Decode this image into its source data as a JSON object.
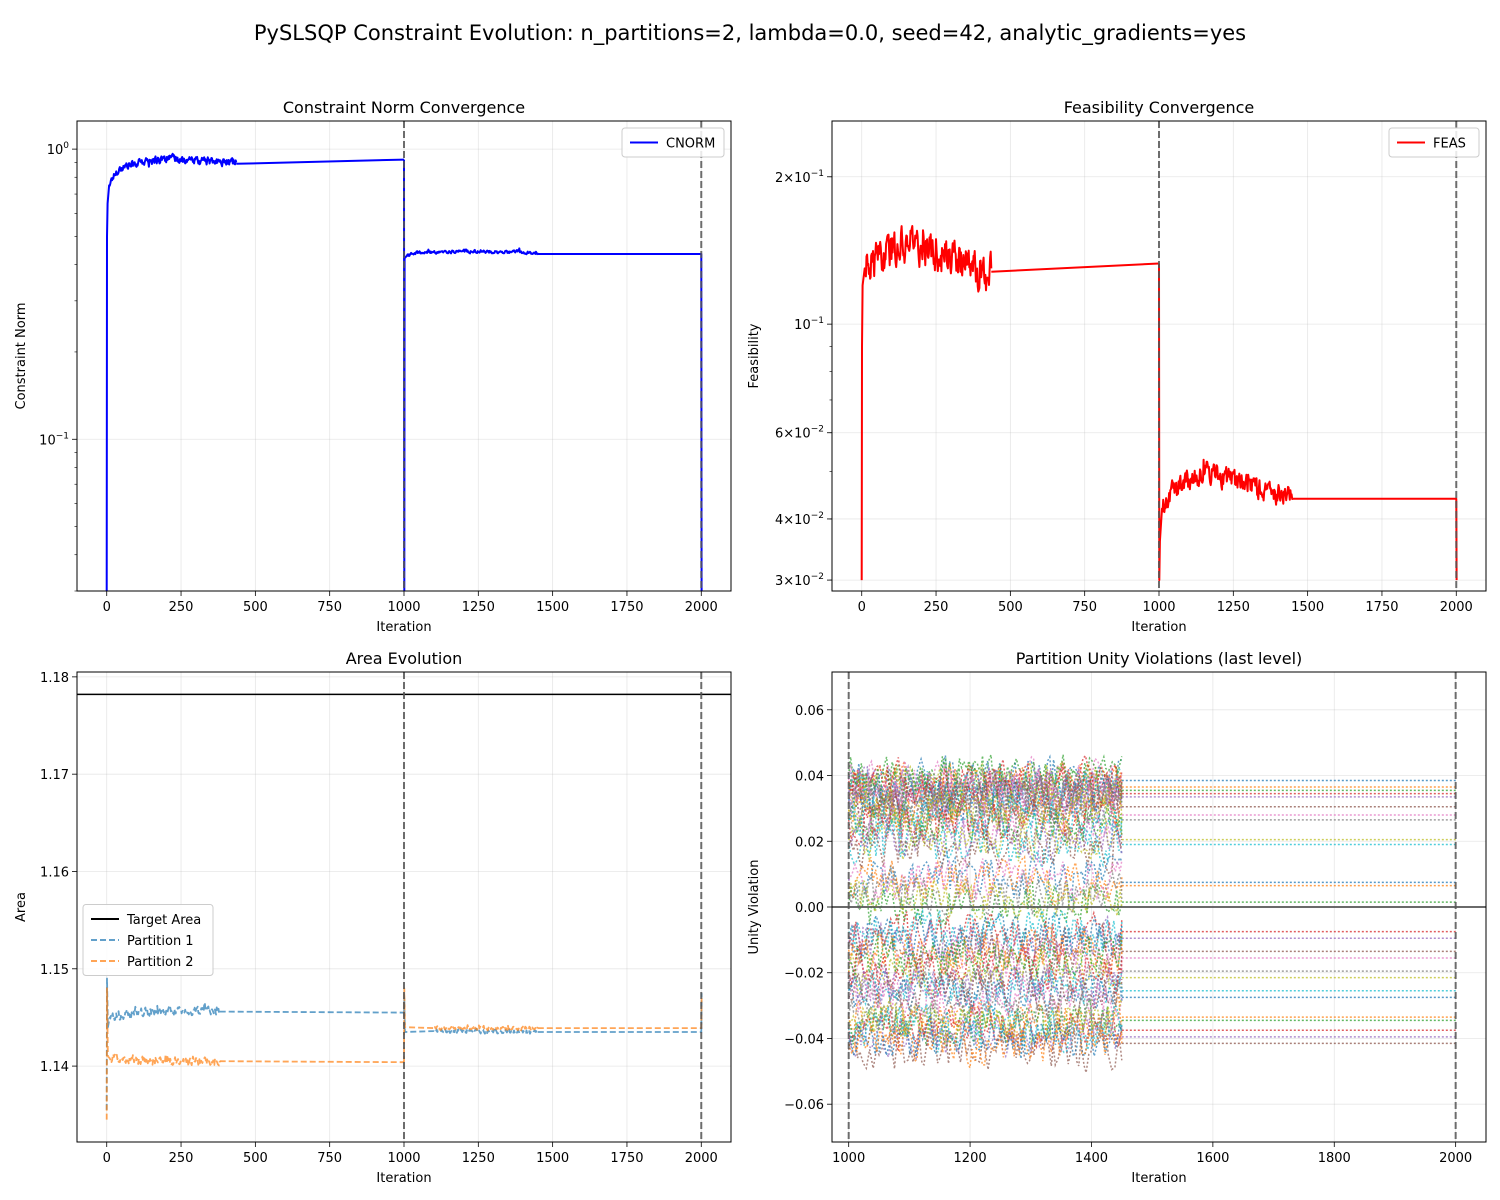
{
  "figure": {
    "title": "PySLSQP Constraint Evolution: n_partitions=2, lambda=0.0, seed=42, analytic_gradients=yes"
  },
  "chart_data": [
    {
      "id": "cnorm",
      "type": "line",
      "title": "Constraint Norm Convergence",
      "xlabel": "Iteration",
      "ylabel": "Constraint Norm",
      "yscale": "log",
      "xlim": [
        -100,
        2100
      ],
      "ylim": [
        0.03,
        1.25
      ],
      "xticks": [
        0,
        250,
        500,
        750,
        1000,
        1250,
        1500,
        1750,
        2000
      ],
      "yticks": [
        {
          "value": 1,
          "base": "10",
          "exp": "0"
        },
        {
          "value": 0.1,
          "base": "10",
          "exp": "−1"
        }
      ],
      "grid": true,
      "legend_position": "upper-right",
      "vlines": [
        1000,
        2000
      ],
      "series": [
        {
          "name": "CNORM",
          "color": "#0000ff",
          "style": "solid",
          "segments": [
            {
              "points": [
                [
                  0,
                  0.03
                ],
                [
                  1,
                  0.5
                ],
                [
                  3,
                  0.65
                ],
                [
                  8,
                  0.75
                ],
                [
                  20,
                  0.8
                ],
                [
                  40,
                  0.85
                ],
                [
                  70,
                  0.88
                ],
                [
                  120,
                  0.9
                ],
                [
                  200,
                  0.93
                ],
                [
                  300,
                  0.91
                ],
                [
                  436,
                  0.9
                ]
              ],
              "noise": 0.045
            },
            {
              "points": [
                [
                  436,
                  0.89
                ],
                [
                  1000,
                  0.92
                ]
              ],
              "noise": 0
            },
            {
              "points": [
                [
                  1000,
                  0.92
                ],
                [
                  1001,
                  0.03
                ],
                [
                  1002,
                  0.42
                ],
                [
                  1010,
                  0.43
                ],
                [
                  1050,
                  0.44
                ],
                [
                  1200,
                  0.445
                ],
                [
                  1450,
                  0.44
                ]
              ],
              "noise": 0.018
            },
            {
              "points": [
                [
                  1450,
                  0.435
                ],
                [
                  2000,
                  0.435
                ],
                [
                  2001,
                  0.03
                ]
              ],
              "noise": 0
            }
          ]
        }
      ]
    },
    {
      "id": "feas",
      "type": "line",
      "title": "Feasibility Convergence",
      "xlabel": "Iteration",
      "ylabel": "Feasibility",
      "yscale": "log",
      "xlim": [
        -100,
        2100
      ],
      "ylim": [
        0.0285,
        0.26
      ],
      "xticks": [
        0,
        250,
        500,
        750,
        1000,
        1250,
        1500,
        1750,
        2000
      ],
      "yticks": [
        {
          "value": 0.2,
          "base": "2×10",
          "exp": "−1"
        },
        {
          "value": 0.1,
          "base": "10",
          "exp": "−1"
        },
        {
          "value": 0.06,
          "base": "6×10",
          "exp": "−2"
        },
        {
          "value": 0.04,
          "base": "4×10",
          "exp": "−2"
        },
        {
          "value": 0.03,
          "base": "3×10",
          "exp": "−2"
        }
      ],
      "grid": true,
      "legend_position": "upper-right",
      "vlines": [
        1000,
        2000
      ],
      "series": [
        {
          "name": "FEAS",
          "color": "#ff0000",
          "style": "solid",
          "segments": [
            {
              "points": [
                [
                  0,
                  0.03
                ],
                [
                  1,
                  0.09
                ],
                [
                  3,
                  0.12
                ],
                [
                  10,
                  0.13
                ],
                [
                  50,
                  0.135
                ],
                [
                  150,
                  0.15
                ],
                [
                  250,
                  0.14
                ],
                [
                  350,
                  0.132
                ],
                [
                  436,
                  0.13
                ]
              ],
              "noise": 0.12
            },
            {
              "points": [
                [
                  436,
                  0.128
                ],
                [
                  1000,
                  0.133
                ]
              ],
              "noise": 0
            },
            {
              "points": [
                [
                  1000,
                  0.133
                ],
                [
                  1001,
                  0.03
                ],
                [
                  1003,
                  0.036
                ],
                [
                  1010,
                  0.042
                ],
                [
                  1050,
                  0.046
                ],
                [
                  1150,
                  0.05
                ],
                [
                  1300,
                  0.047
                ],
                [
                  1450,
                  0.044
                ]
              ],
              "noise": 0.07
            },
            {
              "points": [
                [
                  1450,
                  0.044
                ],
                [
                  2000,
                  0.044
                ],
                [
                  2001,
                  0.03
                ]
              ],
              "noise": 0
            }
          ]
        }
      ]
    },
    {
      "id": "area",
      "type": "line",
      "title": "Area Evolution",
      "xlabel": "Iteration",
      "ylabel": "Area",
      "yscale": "linear",
      "xlim": [
        -100,
        2100
      ],
      "ylim": [
        1.1322,
        1.1805
      ],
      "xticks": [
        0,
        250,
        500,
        750,
        1000,
        1250,
        1500,
        1750,
        2000
      ],
      "yticks": [
        {
          "value": 1.14,
          "label": "1.14"
        },
        {
          "value": 1.15,
          "label": "1.15"
        },
        {
          "value": 1.16,
          "label": "1.16"
        },
        {
          "value": 1.17,
          "label": "1.17"
        },
        {
          "value": 1.18,
          "label": "1.18"
        }
      ],
      "grid": true,
      "legend_position": "center-left",
      "vlines": [
        1000,
        2000
      ],
      "hline": {
        "value": 1.1782,
        "color": "#000000"
      },
      "series": [
        {
          "name": "Target Area",
          "color": "#000000",
          "style": "solid",
          "segments": []
        },
        {
          "name": "Partition 1",
          "color": "#1f77b4",
          "style": "dashed",
          "segments": [
            {
              "points": [
                [
                  0,
                  1.1355
                ],
                [
                  1,
                  1.149
                ],
                [
                  4,
                  1.144
                ],
                [
                  10,
                  1.145
                ],
                [
                  100,
                  1.1455
                ],
                [
                  250,
                  1.1457
                ],
                [
                  380,
                  1.1456
                ]
              ],
              "noise": 0.0004
            },
            {
              "points": [
                [
                  380,
                  1.1456
                ],
                [
                  1000,
                  1.1455
                ]
              ],
              "noise": 0
            },
            {
              "points": [
                [
                  1000,
                  1.1455
                ],
                [
                  1001,
                  1.147
                ],
                [
                  1003,
                  1.1435
                ],
                [
                  1100,
                  1.1436
                ],
                [
                  1450,
                  1.1435
                ]
              ],
              "noise": 0.0002
            },
            {
              "points": [
                [
                  1450,
                  1.1435
                ],
                [
                  2000,
                  1.1435
                ],
                [
                  2001,
                  1.1475
                ]
              ],
              "noise": 0
            }
          ]
        },
        {
          "name": "Partition 2",
          "color": "#ff7f0e",
          "style": "dashed",
          "segments": [
            {
              "points": [
                [
                  0,
                  1.1345
                ],
                [
                  1,
                  1.148
                ],
                [
                  4,
                  1.141
                ],
                [
                  10,
                  1.1408
                ],
                [
                  100,
                  1.1406
                ],
                [
                  250,
                  1.1405
                ],
                [
                  380,
                  1.1405
                ]
              ],
              "noise": 0.0004
            },
            {
              "points": [
                [
                  380,
                  1.1405
                ],
                [
                  1000,
                  1.1404
                ]
              ],
              "noise": 0
            },
            {
              "points": [
                [
                  1000,
                  1.1404
                ],
                [
                  1001,
                  1.148
                ],
                [
                  1003,
                  1.144
                ],
                [
                  1100,
                  1.1439
                ],
                [
                  1450,
                  1.1439
                ]
              ],
              "noise": 0.0002
            },
            {
              "points": [
                [
                  1450,
                  1.1439
                ],
                [
                  2000,
                  1.1439
                ],
                [
                  2001,
                  1.147
                ]
              ],
              "noise": 0
            }
          ]
        }
      ]
    },
    {
      "id": "unity",
      "type": "line",
      "title": "Partition Unity Violations (last level)",
      "xlabel": "Iteration",
      "ylabel": "Unity Violation",
      "yscale": "linear",
      "xlim": [
        972.5,
        2050
      ],
      "ylim": [
        -0.0715,
        0.0715
      ],
      "xticks": [
        1000,
        1200,
        1400,
        1600,
        1800,
        2000
      ],
      "yticks": [
        {
          "value": -0.06,
          "label": "−0.06"
        },
        {
          "value": -0.04,
          "label": "−0.04"
        },
        {
          "value": -0.02,
          "label": "−0.02"
        },
        {
          "value": 0.0,
          "label": "0.00"
        },
        {
          "value": 0.02,
          "label": "0.02"
        },
        {
          "value": 0.04,
          "label": "0.04"
        },
        {
          "value": 0.06,
          "label": "0.06"
        }
      ],
      "grid": true,
      "vlines": [
        1000,
        2000
      ],
      "hline": {
        "value": 0.0,
        "color": "#555555"
      },
      "active_range": [
        1000,
        1450
      ],
      "palette": [
        "#1f77b4",
        "#ff7f0e",
        "#2ca02c",
        "#d62728",
        "#9467bd",
        "#8c564b",
        "#e377c2",
        "#7f7f7f",
        "#bcbd22",
        "#17becf"
      ],
      "final_values": [
        0.0385,
        0.0365,
        0.0355,
        0.0345,
        0.0335,
        0.0305,
        0.028,
        0.0265,
        0.0205,
        0.019,
        0.0075,
        0.0065,
        0.0015,
        -0.0075,
        -0.0095,
        -0.0135,
        -0.0155,
        -0.0195,
        -0.0215,
        -0.0255,
        -0.0275,
        -0.0335,
        -0.0345,
        -0.0375,
        -0.0395,
        -0.0415
      ]
    }
  ]
}
